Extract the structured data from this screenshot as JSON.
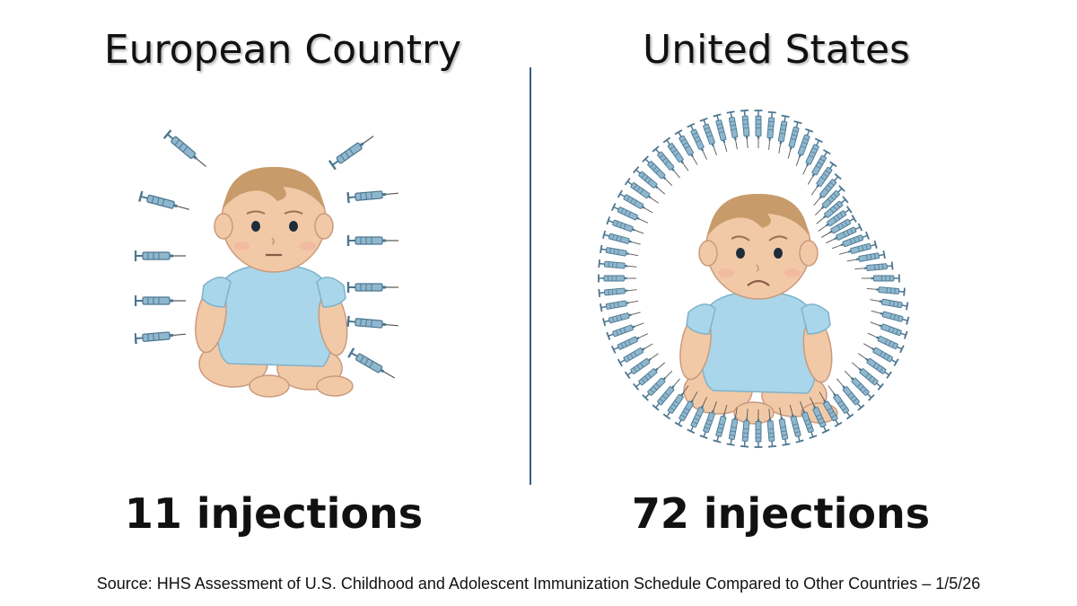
{
  "left_panel": {
    "title": "European Country",
    "count": "11 injections",
    "injection_count": 11
  },
  "right_panel": {
    "title": "United States",
    "count": "72 injections",
    "injection_count": 72
  },
  "source": "Source: HHS Assessment of U.S. Childhood and Adolescent Immunization Schedule Compared to Other Countries – 1/5/26",
  "colors": {
    "onesie": "#a9d6ea",
    "skin": "#f2c9a7",
    "hair": "#c89b6a",
    "syringe": "#8fb8cf",
    "divider": "#3c5a8a"
  }
}
